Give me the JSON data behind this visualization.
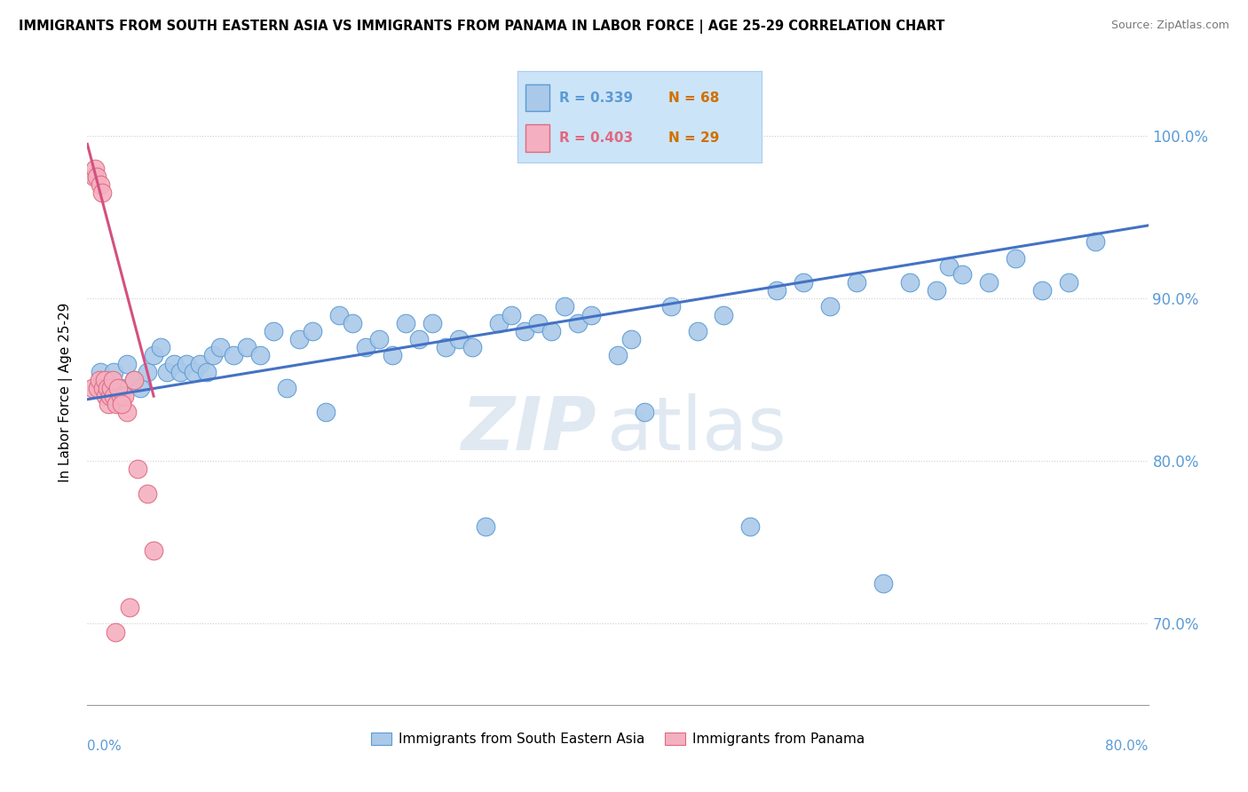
{
  "title": "IMMIGRANTS FROM SOUTH EASTERN ASIA VS IMMIGRANTS FROM PANAMA IN LABOR FORCE | AGE 25-29 CORRELATION CHART",
  "source": "Source: ZipAtlas.com",
  "ylabel": "In Labor Force | Age 25-29",
  "x_lim": [
    0.0,
    80.0
  ],
  "y_lim": [
    65.0,
    103.5
  ],
  "y_ticks": [
    70.0,
    80.0,
    90.0,
    100.0
  ],
  "blue_R": 0.339,
  "blue_N": 68,
  "pink_R": 0.403,
  "pink_N": 29,
  "blue_color": "#aac9e8",
  "blue_edge_color": "#5b9bd5",
  "pink_color": "#f4b0c0",
  "pink_edge_color": "#e06880",
  "blue_line_color": "#4472c4",
  "pink_line_color": "#d45080",
  "legend_bg": "#cce4f7",
  "legend_border": "#aaccee",
  "watermark_color": "#c8d8e8",
  "blue_x": [
    1.0,
    1.5,
    2.0,
    2.5,
    3.0,
    3.5,
    4.0,
    4.5,
    5.0,
    5.5,
    6.0,
    6.5,
    7.0,
    7.5,
    8.0,
    8.5,
    9.0,
    9.5,
    10.0,
    11.0,
    12.0,
    13.0,
    14.0,
    15.0,
    16.0,
    17.0,
    18.0,
    19.0,
    20.0,
    21.0,
    22.0,
    23.0,
    24.0,
    25.0,
    26.0,
    27.0,
    28.0,
    29.0,
    30.0,
    31.0,
    32.0,
    33.0,
    34.0,
    35.0,
    36.0,
    37.0,
    38.0,
    40.0,
    41.0,
    42.0,
    44.0,
    46.0,
    48.0,
    50.0,
    52.0,
    54.0,
    56.0,
    58.0,
    60.0,
    62.0,
    64.0,
    65.0,
    66.0,
    68.0,
    70.0,
    72.0,
    74.0,
    76.0
  ],
  "blue_y": [
    85.5,
    85.0,
    85.5,
    84.5,
    86.0,
    85.0,
    84.5,
    85.5,
    86.5,
    87.0,
    85.5,
    86.0,
    85.5,
    86.0,
    85.5,
    86.0,
    85.5,
    86.5,
    87.0,
    86.5,
    87.0,
    86.5,
    88.0,
    84.5,
    87.5,
    88.0,
    83.0,
    89.0,
    88.5,
    87.0,
    87.5,
    86.5,
    88.5,
    87.5,
    88.5,
    87.0,
    87.5,
    87.0,
    76.0,
    88.5,
    89.0,
    88.0,
    88.5,
    88.0,
    89.5,
    88.5,
    89.0,
    86.5,
    87.5,
    83.0,
    89.5,
    88.0,
    89.0,
    76.0,
    90.5,
    91.0,
    89.5,
    91.0,
    72.5,
    91.0,
    90.5,
    92.0,
    91.5,
    91.0,
    92.5,
    90.5,
    91.0,
    93.5
  ],
  "pink_x": [
    0.4,
    0.5,
    0.6,
    0.7,
    0.8,
    0.9,
    1.0,
    1.1,
    1.2,
    1.3,
    1.4,
    1.5,
    1.6,
    1.7,
    1.8,
    2.0,
    2.2,
    2.5,
    3.0,
    3.5,
    4.5,
    2.8,
    1.9,
    2.3,
    3.8,
    5.0,
    2.1,
    3.2,
    2.6
  ],
  "pink_y": [
    84.5,
    97.5,
    98.0,
    97.5,
    84.5,
    85.0,
    97.0,
    96.5,
    84.5,
    85.0,
    84.0,
    84.5,
    83.5,
    84.0,
    84.5,
    84.0,
    83.5,
    84.0,
    83.0,
    85.0,
    78.0,
    84.0,
    85.0,
    84.5,
    79.5,
    74.5,
    69.5,
    71.0,
    83.5
  ],
  "blue_trend": [
    0.0,
    80.0,
    83.8,
    94.5
  ],
  "pink_trend": [
    0.0,
    5.0,
    99.5,
    84.0
  ]
}
